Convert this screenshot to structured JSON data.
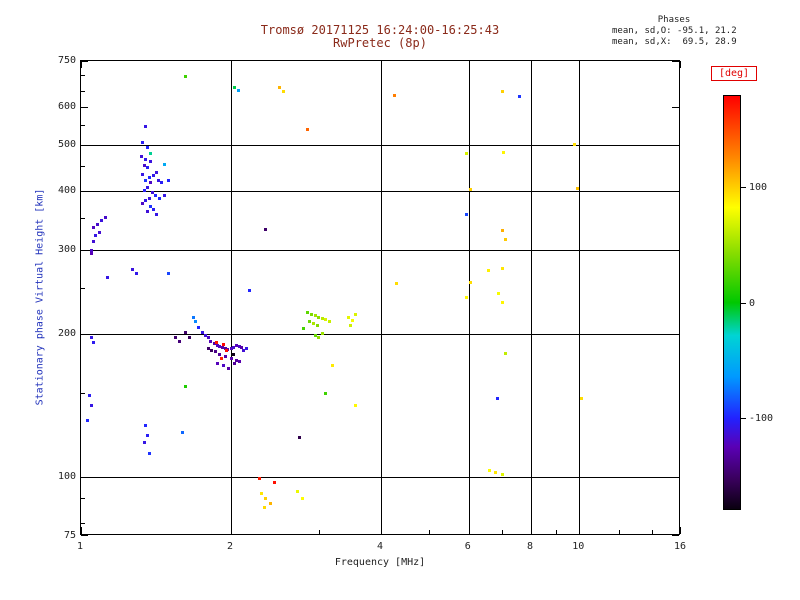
{
  "title": {
    "line1": "Tromsø 20171125 16:24:00-16:25:43",
    "line2": "RwPretec (8p)"
  },
  "stats": {
    "heading": "Phases",
    "o_line": "mean, sd,O: -95.1, 21.2",
    "x_line": "mean, sd,X:  69.5, 28.9"
  },
  "colors": {
    "title": "#8a2a1a",
    "ylabel": "#2233bb",
    "deg_label": "#e00000",
    "text": "#222222"
  },
  "colorbar": {
    "label": "[deg]",
    "ticks": [
      100,
      0,
      -100
    ],
    "range": [
      -180,
      180
    ],
    "stops": [
      [
        0,
        "#0a0010"
      ],
      [
        0.07,
        "#38005a"
      ],
      [
        0.15,
        "#5a00b4"
      ],
      [
        0.22,
        "#2222ff"
      ],
      [
        0.32,
        "#0099ff"
      ],
      [
        0.42,
        "#00d4d4"
      ],
      [
        0.5,
        "#00c800"
      ],
      [
        0.62,
        "#88dd00"
      ],
      [
        0.73,
        "#ffff00"
      ],
      [
        0.85,
        "#ff8800"
      ],
      [
        1,
        "#ff0000"
      ]
    ]
  },
  "chart_data": {
    "type": "scatter",
    "title": "Tromsø 20171125 16:24:00-16:25:43",
    "subtitle": "RwPretec (8p)",
    "xlabel": "Frequency [MHz]",
    "ylabel": "Stationary phase Virtual Height [km]",
    "x_scale": "log",
    "y_scale": "log",
    "xlim": [
      1,
      16
    ],
    "ylim": [
      75,
      750
    ],
    "x_ticks": [
      1,
      2,
      4,
      6,
      8,
      10,
      16
    ],
    "x_minor_ticks": [
      3,
      5,
      7,
      9,
      12,
      14
    ],
    "y_ticks": [
      750,
      600,
      500,
      400,
      300,
      200,
      100,
      75
    ],
    "y_minor_ticks": [
      80,
      90,
      150,
      250,
      350,
      450,
      550,
      650,
      700
    ],
    "x_gridlines": [
      2,
      4,
      6,
      8,
      10
    ],
    "y_gridlines": [
      100,
      200,
      300,
      400,
      500
    ],
    "color_value": "phase [deg]",
    "legend_position": "right-colorbar",
    "grid": true,
    "points": [
      [
        1.05,
        300,
        -120
      ],
      [
        1.06,
        312,
        -115
      ],
      [
        1.07,
        322,
        -110
      ],
      [
        1.05,
        295,
        -125
      ],
      [
        1.08,
        340,
        -118
      ],
      [
        1.1,
        346,
        -112
      ],
      [
        1.12,
        352,
        -118
      ],
      [
        1.06,
        334,
        -122
      ],
      [
        1.09,
        326,
        -116
      ],
      [
        1.13,
        262,
        -110
      ],
      [
        1.27,
        273,
        -112
      ],
      [
        1.29,
        268,
        -108
      ],
      [
        1.04,
        148,
        -105
      ],
      [
        1.05,
        141,
        -110
      ],
      [
        1.03,
        131,
        -100
      ],
      [
        1.05,
        196,
        -110
      ],
      [
        1.06,
        192,
        -106
      ],
      [
        1.35,
        545,
        -110
      ],
      [
        1.33,
        505,
        -104
      ],
      [
        1.36,
        492,
        -100
      ],
      [
        1.32,
        472,
        -114
      ],
      [
        1.35,
        466,
        -108
      ],
      [
        1.38,
        461,
        -112
      ],
      [
        1.34,
        452,
        -118
      ],
      [
        1.36,
        447,
        -104
      ],
      [
        1.33,
        432,
        -110
      ],
      [
        1.37,
        427,
        -100
      ],
      [
        1.35,
        421,
        -96
      ],
      [
        1.4,
        431,
        -108
      ],
      [
        1.42,
        436,
        -112
      ],
      [
        1.38,
        416,
        -120
      ],
      [
        1.36,
        406,
        -110
      ],
      [
        1.34,
        401,
        -104
      ],
      [
        1.39,
        396,
        -114
      ],
      [
        1.41,
        391,
        -100
      ],
      [
        1.43,
        421,
        -110
      ],
      [
        1.45,
        416,
        -104
      ],
      [
        1.37,
        386,
        -112
      ],
      [
        1.35,
        381,
        -108
      ],
      [
        1.33,
        376,
        -120
      ],
      [
        1.38,
        371,
        -96
      ],
      [
        1.44,
        386,
        -100
      ],
      [
        1.47,
        391,
        -110
      ],
      [
        1.4,
        366,
        -104
      ],
      [
        1.36,
        361,
        -114
      ],
      [
        1.42,
        356,
        -110
      ],
      [
        1.5,
        421,
        -100
      ],
      [
        1.47,
        455,
        -55
      ],
      [
        1.38,
        478,
        -20
      ],
      [
        1.7,
        212,
        -70
      ],
      [
        1.68,
        216,
        -75
      ],
      [
        1.72,
        206,
        -100
      ],
      [
        1.75,
        201,
        -110
      ],
      [
        1.78,
        198,
        -114
      ],
      [
        1.8,
        196,
        -120
      ],
      [
        1.82,
        193,
        -124
      ],
      [
        1.85,
        191,
        -130
      ],
      [
        1.88,
        189,
        -124
      ],
      [
        1.9,
        188,
        -120
      ],
      [
        1.92,
        187,
        -130
      ],
      [
        1.95,
        186,
        -134
      ],
      [
        1.97,
        185,
        -128
      ],
      [
        2.0,
        186,
        -122
      ],
      [
        2.02,
        187,
        -118
      ],
      [
        2.05,
        189,
        -124
      ],
      [
        2.08,
        188,
        -120
      ],
      [
        2.1,
        187,
        -130
      ],
      [
        1.86,
        183,
        -140
      ],
      [
        1.9,
        181,
        -134
      ],
      [
        1.95,
        179,
        -130
      ],
      [
        2.0,
        177,
        -128
      ],
      [
        2.05,
        176,
        -132
      ],
      [
        1.88,
        173,
        -124
      ],
      [
        1.93,
        171,
        -120
      ],
      [
        1.98,
        169,
        -130
      ],
      [
        2.03,
        173,
        -134
      ],
      [
        2.08,
        175,
        -128
      ],
      [
        1.8,
        186,
        -150
      ],
      [
        1.83,
        184,
        -154
      ],
      [
        1.62,
        201,
        -150
      ],
      [
        1.65,
        196,
        -154
      ],
      [
        1.55,
        196,
        -148
      ],
      [
        1.58,
        193,
        -145
      ],
      [
        1.87,
        192,
        172
      ],
      [
        1.96,
        184,
        176
      ],
      [
        2.02,
        181,
        -178
      ],
      [
        1.91,
        177,
        166
      ],
      [
        1.93,
        190,
        178
      ],
      [
        2.12,
        184,
        -115
      ],
      [
        2.15,
        186,
        -110
      ],
      [
        2.85,
        222,
        30
      ],
      [
        2.9,
        220,
        40
      ],
      [
        2.95,
        218,
        52
      ],
      [
        3.0,
        216,
        45
      ],
      [
        3.05,
        215,
        60
      ],
      [
        2.88,
        212,
        35
      ],
      [
        2.93,
        210,
        55
      ],
      [
        2.98,
        208,
        42
      ],
      [
        3.1,
        214,
        70
      ],
      [
        3.15,
        212,
        64
      ],
      [
        2.8,
        205,
        22
      ],
      [
        3.05,
        200,
        50
      ],
      [
        2.95,
        198,
        32
      ],
      [
        3.0,
        196,
        46
      ],
      [
        3.45,
        216,
        74
      ],
      [
        3.5,
        213,
        80
      ],
      [
        3.55,
        219,
        70
      ],
      [
        3.48,
        208,
        66
      ],
      [
        2.18,
        246,
        -100
      ],
      [
        1.5,
        268,
        -90
      ],
      [
        2.35,
        332,
        -150
      ],
      [
        3.1,
        150,
        20
      ],
      [
        3.2,
        171,
        90
      ],
      [
        3.55,
        141,
        85
      ],
      [
        2.75,
        121,
        -160
      ],
      [
        1.6,
        124,
        -80
      ],
      [
        1.62,
        155,
        10
      ],
      [
        2.3,
        92,
        92
      ],
      [
        2.35,
        90,
        100
      ],
      [
        2.4,
        88,
        110
      ],
      [
        2.33,
        86,
        96
      ],
      [
        2.45,
        97,
        174
      ],
      [
        2.28,
        99,
        170
      ],
      [
        2.72,
        93,
        76
      ],
      [
        2.78,
        90,
        82
      ],
      [
        1.35,
        128,
        -100
      ],
      [
        1.36,
        122,
        -104
      ],
      [
        1.34,
        118,
        -110
      ],
      [
        1.37,
        112,
        -96
      ],
      [
        5.95,
        480,
        70
      ],
      [
        6.05,
        403,
        100
      ],
      [
        5.95,
        357,
        -90
      ],
      [
        6.05,
        256,
        95
      ],
      [
        5.95,
        238,
        85
      ],
      [
        6.57,
        271,
        88
      ],
      [
        6.6,
        103,
        82
      ],
      [
        6.8,
        102,
        92
      ],
      [
        7.0,
        101,
        72
      ],
      [
        7.05,
        482,
        86
      ],
      [
        7.0,
        648,
        100
      ],
      [
        7.6,
        630,
        -95
      ],
      [
        7.0,
        329,
        112
      ],
      [
        7.1,
        316,
        102
      ],
      [
        7.0,
        274,
        92
      ],
      [
        6.9,
        243,
        80
      ],
      [
        7.0,
        233,
        86
      ],
      [
        7.1,
        182,
        62
      ],
      [
        6.85,
        146,
        -100
      ],
      [
        9.8,
        500,
        95
      ],
      [
        10.1,
        146,
        95
      ],
      [
        9.9,
        405,
        105
      ],
      [
        1.62,
        695,
        20
      ],
      [
        2.03,
        660,
        -10
      ],
      [
        2.07,
        650,
        -60
      ],
      [
        2.5,
        660,
        110
      ],
      [
        2.55,
        648,
        95
      ],
      [
        2.85,
        538,
        140
      ],
      [
        4.25,
        635,
        130
      ],
      [
        4.3,
        255,
        95
      ]
    ]
  }
}
